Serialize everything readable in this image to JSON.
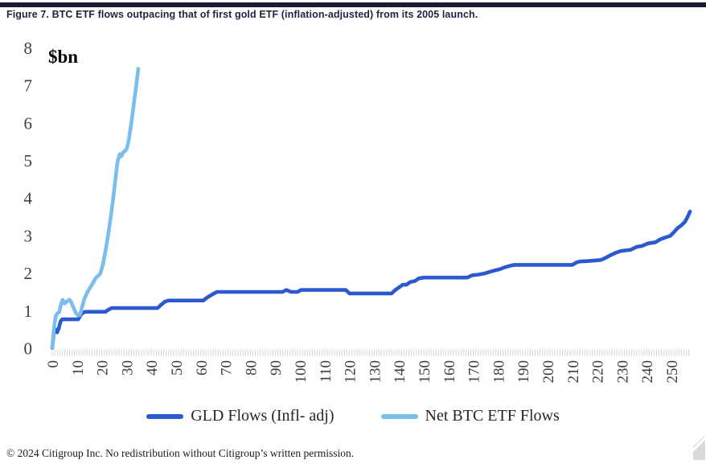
{
  "header": {
    "title": "Figure 7. BTC ETF flows outpacing that of first gold ETF (inflation-adjusted) from its 2005 launch."
  },
  "footer": {
    "copyright": "© 2024 Citigroup Inc. No redistribution without Citigroup’s written permission."
  },
  "colors": {
    "top_bar": "#161a33",
    "title_navy": "#1d2442",
    "axis_text": "#3e3e3e",
    "tick_strip": "#d8d8d8",
    "gld_blue": "#2b59d0",
    "btc_light_blue": "#7bbdeb",
    "logo_gray": "#d9d9d9"
  },
  "chart_data": {
    "type": "line",
    "title": "Figure 7. BTC ETF flows outpacing that of first gold ETF (inflation-adjusted) from its 2005 launch.",
    "unit_label": "$bn",
    "xlabel": "",
    "ylabel": "$bn",
    "xlim": [
      0,
      258
    ],
    "ylim": [
      0,
      8
    ],
    "grid": false,
    "legend_position": "bottom",
    "xticks": [
      0,
      10,
      20,
      30,
      40,
      50,
      60,
      70,
      80,
      90,
      100,
      110,
      120,
      130,
      140,
      150,
      160,
      170,
      180,
      190,
      200,
      210,
      220,
      230,
      240,
      250
    ],
    "yticks": [
      0,
      1,
      2,
      3,
      4,
      5,
      6,
      7,
      8
    ],
    "minor_tick_count": 258,
    "series": [
      {
        "name": "GLD Flows (Infl- adj)",
        "color": "#2b59d0",
        "points": [
          [
            0,
            0.02
          ],
          [
            0.6,
            0.4
          ],
          [
            1.2,
            0.52
          ],
          [
            1.9,
            0.43
          ],
          [
            2.6,
            0.53
          ],
          [
            3.3,
            0.72
          ],
          [
            4,
            0.78
          ],
          [
            10.5,
            0.78
          ],
          [
            11.5,
            0.9
          ],
          [
            12.5,
            0.96
          ],
          [
            13.5,
            0.98
          ],
          [
            21.5,
            0.98
          ],
          [
            22.5,
            1.03
          ],
          [
            24,
            1.08
          ],
          [
            42.5,
            1.08
          ],
          [
            44,
            1.17
          ],
          [
            45.5,
            1.25
          ],
          [
            47,
            1.28
          ],
          [
            61,
            1.28
          ],
          [
            62.5,
            1.36
          ],
          [
            64.5,
            1.44
          ],
          [
            66.5,
            1.51
          ],
          [
            93,
            1.51
          ],
          [
            94.5,
            1.56
          ],
          [
            96.5,
            1.51
          ],
          [
            99,
            1.51
          ],
          [
            100.5,
            1.56
          ],
          [
            118.5,
            1.56
          ],
          [
            120,
            1.47
          ],
          [
            137,
            1.47
          ],
          [
            138.5,
            1.56
          ],
          [
            140,
            1.63
          ],
          [
            141.5,
            1.7
          ],
          [
            143,
            1.7
          ],
          [
            144.5,
            1.77
          ],
          [
            146.5,
            1.8
          ],
          [
            148,
            1.87
          ],
          [
            150,
            1.89
          ],
          [
            167.5,
            1.89
          ],
          [
            169.5,
            1.95
          ],
          [
            172,
            1.97
          ],
          [
            174.5,
            2.0
          ],
          [
            176.5,
            2.04
          ],
          [
            178.5,
            2.08
          ],
          [
            180.5,
            2.11
          ],
          [
            182.5,
            2.16
          ],
          [
            184.5,
            2.2
          ],
          [
            186.5,
            2.23
          ],
          [
            210,
            2.23
          ],
          [
            211.5,
            2.29
          ],
          [
            213,
            2.32
          ],
          [
            216,
            2.33
          ],
          [
            221.5,
            2.36
          ],
          [
            223.5,
            2.42
          ],
          [
            225.5,
            2.49
          ],
          [
            227.5,
            2.55
          ],
          [
            229.5,
            2.6
          ],
          [
            233.5,
            2.63
          ],
          [
            236,
            2.71
          ],
          [
            238,
            2.73
          ],
          [
            240.5,
            2.8
          ],
          [
            243.5,
            2.83
          ],
          [
            245.5,
            2.91
          ],
          [
            247.5,
            2.96
          ],
          [
            249.5,
            3.0
          ],
          [
            251,
            3.1
          ],
          [
            252.5,
            3.21
          ],
          [
            254,
            3.28
          ],
          [
            255.5,
            3.38
          ],
          [
            256.5,
            3.5
          ],
          [
            257.5,
            3.65
          ]
        ]
      },
      {
        "name": "Net BTC ETF Flows",
        "color": "#7bbdeb",
        "points": [
          [
            0,
            0.03
          ],
          [
            0.8,
            0.62
          ],
          [
            1.5,
            0.88
          ],
          [
            2.2,
            0.95
          ],
          [
            2.8,
            0.97
          ],
          [
            3.5,
            1.18
          ],
          [
            4.2,
            1.3
          ],
          [
            5,
            1.2
          ],
          [
            6,
            1.26
          ],
          [
            6.8,
            1.3
          ],
          [
            7.5,
            1.26
          ],
          [
            8.5,
            1.1
          ],
          [
            9.5,
            0.95
          ],
          [
            10.5,
            0.88
          ],
          [
            11.2,
            0.9
          ],
          [
            12,
            1.1
          ],
          [
            13,
            1.33
          ],
          [
            14,
            1.48
          ],
          [
            15,
            1.6
          ],
          [
            16,
            1.7
          ],
          [
            17,
            1.82
          ],
          [
            17.8,
            1.9
          ],
          [
            18.8,
            1.95
          ],
          [
            19.5,
            2.02
          ],
          [
            20.5,
            2.25
          ],
          [
            21.5,
            2.6
          ],
          [
            22.5,
            3.0
          ],
          [
            23.5,
            3.45
          ],
          [
            24.5,
            3.95
          ],
          [
            25.5,
            4.5
          ],
          [
            26.3,
            4.95
          ],
          [
            26.8,
            5.08
          ],
          [
            27.3,
            5.18
          ],
          [
            27.9,
            5.12
          ],
          [
            28.6,
            5.22
          ],
          [
            29.5,
            5.27
          ],
          [
            30.2,
            5.35
          ],
          [
            31,
            5.6
          ],
          [
            32,
            6.05
          ],
          [
            33,
            6.55
          ],
          [
            34,
            7.05
          ],
          [
            34.7,
            7.45
          ]
        ]
      }
    ]
  }
}
